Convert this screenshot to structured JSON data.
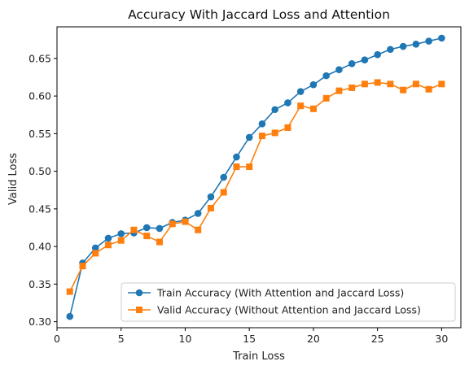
{
  "chart_data": {
    "type": "line",
    "title": "Accuracy With Jaccard Loss and Attention",
    "xlabel": "Train Loss",
    "ylabel": "Valid Loss",
    "xlim": [
      0,
      31.5
    ],
    "ylim": [
      0.292,
      0.692
    ],
    "xticks": [
      0,
      5,
      10,
      15,
      20,
      25,
      30
    ],
    "yticks": [
      0.3,
      0.35,
      0.4,
      0.45,
      0.5,
      0.55,
      0.6,
      0.65
    ],
    "x": [
      1,
      2,
      3,
      4,
      5,
      6,
      7,
      8,
      9,
      10,
      11,
      12,
      13,
      14,
      15,
      16,
      17,
      18,
      19,
      20,
      21,
      22,
      23,
      24,
      25,
      26,
      27,
      28,
      29,
      30
    ],
    "legend_position": "lower-right",
    "grid": false,
    "series": [
      {
        "name": "Train Accuracy (With Attention and Jaccard Loss)",
        "color": "#1f77b4",
        "marker": "circle",
        "values": [
          0.307,
          0.378,
          0.398,
          0.411,
          0.417,
          0.418,
          0.425,
          0.424,
          0.432,
          0.435,
          0.444,
          0.466,
          0.492,
          0.519,
          0.545,
          0.563,
          0.582,
          0.591,
          0.606,
          0.615,
          0.627,
          0.635,
          0.643,
          0.648,
          0.655,
          0.662,
          0.666,
          0.669,
          0.673,
          0.677
        ]
      },
      {
        "name": "Valid Accuracy (Without Attention and Jaccard Loss)",
        "color": "#ff7f0e",
        "marker": "square",
        "values": [
          0.34,
          0.374,
          0.391,
          0.402,
          0.408,
          0.422,
          0.414,
          0.406,
          0.43,
          0.433,
          0.422,
          0.451,
          0.472,
          0.506,
          0.506,
          0.547,
          0.551,
          0.558,
          0.587,
          0.583,
          0.597,
          0.607,
          0.611,
          0.616,
          0.618,
          0.616,
          0.608,
          0.616,
          0.609,
          0.616
        ]
      }
    ]
  }
}
